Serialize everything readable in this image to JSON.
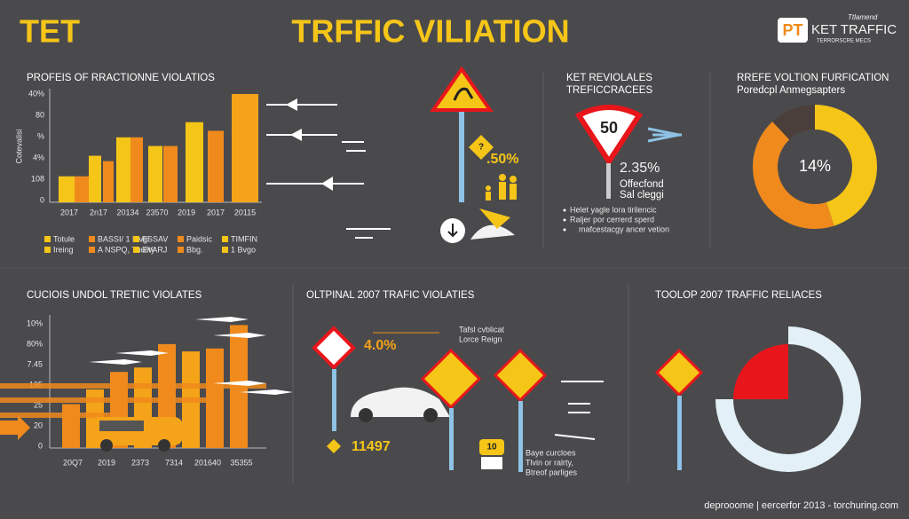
{
  "header": {
    "left_title": "TET",
    "title": "TRFFIC VILIATION",
    "logo_mark": "PT",
    "logo_text": "KET TRAFFIC",
    "logo_small": "Ttlamend",
    "logo_sub": "TERRORSCRE MECS"
  },
  "panel_top_left": {
    "title": "PROFEIS OF RRACTIONNE VIOLATIOS",
    "y_title": "Cotevalisi",
    "y_labels": [
      "40%",
      "80",
      "%",
      "4%",
      "108",
      "0"
    ],
    "x_labels": [
      "2017",
      "2n17",
      "20134",
      "23570",
      "2019",
      "2017",
      "20115"
    ],
    "bars": [
      {
        "color": "#f5c518",
        "value": 24
      },
      {
        "color": "#f08a1c",
        "value": 24
      },
      {
        "color": "#f5c518",
        "value": 43
      },
      {
        "color": "#f08a1c",
        "value": 38
      },
      {
        "color": "#f5c518",
        "value": 60
      },
      {
        "color": "#f08a1c",
        "value": 60
      },
      {
        "color": "#f5c518",
        "value": 52
      },
      {
        "color": "#f08a1c",
        "value": 52
      },
      {
        "color": "#f5c518",
        "value": 74
      },
      {
        "color": "#f08a1c",
        "value": 66
      },
      {
        "color": "#f5a318",
        "value": 100
      }
    ],
    "legend_row1": [
      "Totule",
      "BASSI/ 1 Mvgl",
      "ESSAV",
      "Paidsic",
      "TIMFIN"
    ],
    "legend_row2": [
      "Ireing",
      "A NSPQ, Tuulity",
      "EVARJ",
      "Bbg.",
      "1 Bvgo"
    ]
  },
  "panel_top_mid": {
    "sign_label": "?",
    "percent": ".50%"
  },
  "panel_top_right1": {
    "title1": "KET REVIOLALES",
    "title2": "TREFICCRACEES",
    "sign": "50",
    "percent": "2.35%",
    "sub1": "Offecfond",
    "sub2": "Sal cleggi",
    "bullets": [
      "Helet yagle lora tirilencic",
      "Raljer por cerrerd sperd",
      "mafcestacgy ancer vetion"
    ]
  },
  "panel_top_right2": {
    "title": "RREFE VOLTION FURFICATION",
    "subtitle": "Poredcpl Anmegsapters",
    "center_label": "14%",
    "segments": [
      {
        "color": "#f5c518",
        "value": 45
      },
      {
        "color": "#f08a1c",
        "value": 43
      },
      {
        "color": "#4a3f3a",
        "value": 12
      }
    ]
  },
  "panel_bottom_left": {
    "title": "CUCIOIS UNDOL TRETIIC VIOLATES",
    "y_labels": [
      "10%",
      "80%",
      "7.45",
      "195",
      "25",
      "20",
      "0"
    ],
    "x_labels": [
      "20Q7",
      "2019",
      "2373",
      "7314",
      "201640",
      "35355"
    ],
    "bars": [
      {
        "color": "#f08a1c",
        "value": 30
      },
      {
        "color": "#f5a318",
        "value": 40
      },
      {
        "color": "#f08a1c",
        "value": 52
      },
      {
        "color": "#f5a318",
        "value": 55
      },
      {
        "color": "#f08a1c",
        "value": 71
      },
      {
        "color": "#f5a318",
        "value": 66
      },
      {
        "color": "#f08a1c",
        "value": 68
      },
      {
        "color": "#f08a1c",
        "value": 84
      }
    ]
  },
  "panel_bottom_mid": {
    "title": "OLTPINAL 2007 TRAFIC VIOLATIES",
    "percent": "4.0%",
    "note1": "Tafsl cvblicat",
    "note2": "Lorce Reign",
    "count": "11497",
    "badge": "10",
    "caption": [
      "Baye curcloes",
      "Tlvin or ralrty,",
      "Btreof parliges"
    ]
  },
  "panel_bottom_right": {
    "title": "TOOLOP 2007 TRAFFIC RELIACES",
    "segments": [
      {
        "color": "#e8161b",
        "value": 25
      },
      {
        "color": "#e3f0f7",
        "value": 75
      }
    ]
  },
  "footer": "deprooome | eercerfor 2013 - torchuring.com"
}
